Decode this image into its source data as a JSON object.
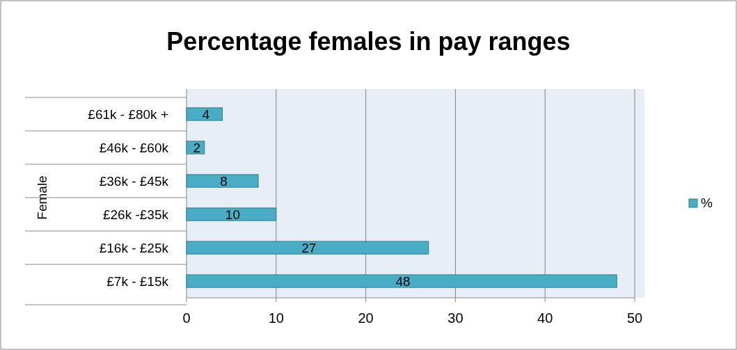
{
  "chart_data": {
    "type": "bar",
    "orientation": "horizontal",
    "title": "Percentage females in pay ranges",
    "ylabel": "Female",
    "categories": [
      "£61k - £80k +",
      "£46k - £60k",
      "£36k - £45k",
      "£26k -£35k",
      "£16k - £25k",
      "£7k - £15k"
    ],
    "series": [
      {
        "name": "%",
        "color": "#4bacc6",
        "values": [
          4,
          2,
          8,
          10,
          27,
          48
        ]
      }
    ],
    "xlim": [
      0,
      50
    ],
    "xticks": [
      0,
      10,
      20,
      30,
      40,
      50
    ],
    "grid": "x",
    "legend": "right",
    "data_labels": true
  }
}
